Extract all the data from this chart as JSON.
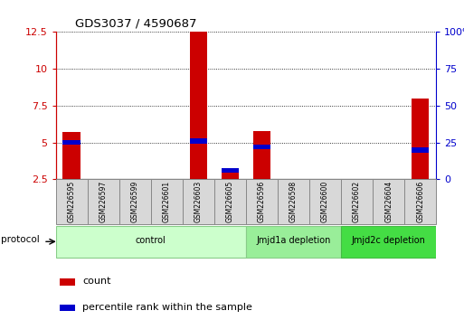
{
  "title": "GDS3037 / 4590687",
  "samples": [
    "GSM226595",
    "GSM226597",
    "GSM226599",
    "GSM226601",
    "GSM226603",
    "GSM226605",
    "GSM226596",
    "GSM226598",
    "GSM226600",
    "GSM226602",
    "GSM226604",
    "GSM226606"
  ],
  "count_values": [
    5.7,
    0,
    0,
    0,
    12.5,
    3.0,
    5.8,
    0,
    0,
    0,
    0,
    8.0
  ],
  "percentile_values": [
    25.0,
    0,
    0,
    0,
    26.0,
    6.0,
    22.0,
    0,
    0,
    0,
    0,
    20.0
  ],
  "ylim_left": [
    2.5,
    12.5
  ],
  "ylim_right": [
    0,
    100
  ],
  "yticks_left": [
    2.5,
    5.0,
    7.5,
    10.0,
    12.5
  ],
  "yticks_right": [
    0,
    25,
    50,
    75,
    100
  ],
  "groups": [
    {
      "label": "control",
      "start": 0,
      "end": 5,
      "color": "#ccffcc",
      "edge_color": "#88cc88"
    },
    {
      "label": "Jmjd1a depletion",
      "start": 6,
      "end": 8,
      "color": "#99ee99",
      "edge_color": "#88cc88"
    },
    {
      "label": "Jmjd2c depletion",
      "start": 9,
      "end": 11,
      "color": "#44dd44",
      "edge_color": "#44bb44"
    }
  ],
  "count_color": "#cc0000",
  "percentile_color": "#0000cc",
  "bar_width": 0.55,
  "background_color": "#ffffff",
  "left_axis_color": "#cc0000",
  "right_axis_color": "#0000cc",
  "legend_items": [
    "count",
    "percentile rank within the sample"
  ],
  "protocol_label": "protocol"
}
